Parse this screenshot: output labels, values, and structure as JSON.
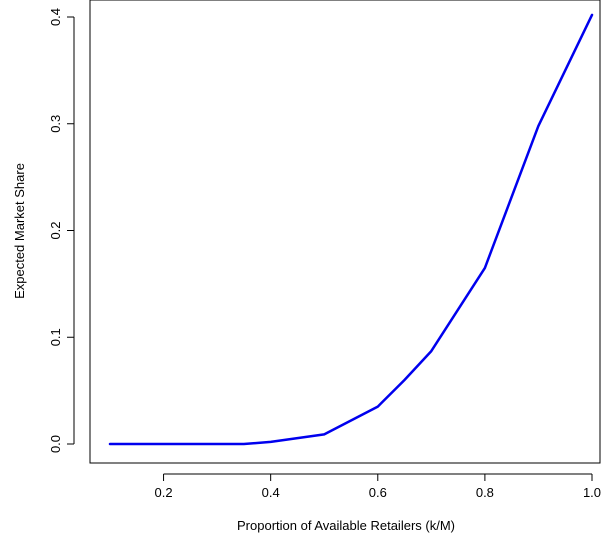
{
  "chart_data": {
    "type": "line",
    "title": "",
    "xlabel": "Proportion of Available Retailers (k/M)",
    "ylabel": "Expected Market Share",
    "xlim": [
      0.1,
      1.0
    ],
    "ylim": [
      0.0,
      0.4
    ],
    "x_ticks": [
      0.2,
      0.4,
      0.6,
      0.8,
      1.0
    ],
    "x_tick_labels": [
      "0.2",
      "0.4",
      "0.6",
      "0.8",
      "1.0"
    ],
    "y_ticks": [
      0.0,
      0.1,
      0.2,
      0.3,
      0.4
    ],
    "y_tick_labels": [
      "0.0",
      "0.1",
      "0.2",
      "0.3",
      "0.4"
    ],
    "grid": false,
    "legend": "none",
    "series": [
      {
        "color": "#0000ee",
        "x": [
          0.1,
          0.2,
          0.3,
          0.35,
          0.4,
          0.5,
          0.6,
          0.65,
          0.7,
          0.8,
          0.9,
          1.0
        ],
        "y": [
          0.0,
          0.0,
          0.0,
          0.0,
          0.002,
          0.009,
          0.035,
          0.06,
          0.087,
          0.165,
          0.298,
          0.402
        ]
      }
    ]
  }
}
